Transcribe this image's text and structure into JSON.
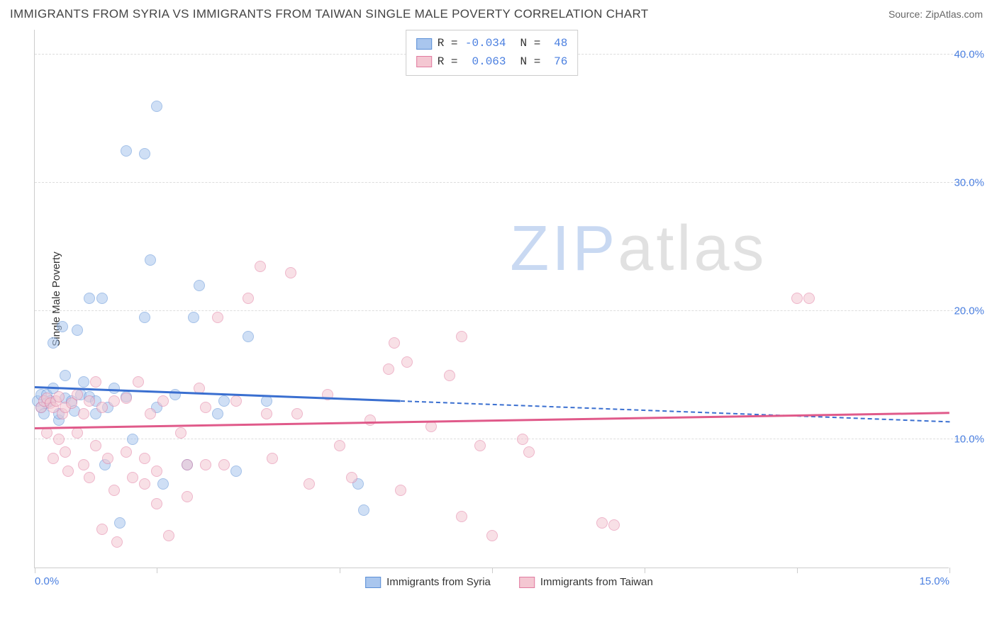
{
  "title": "IMMIGRANTS FROM SYRIA VS IMMIGRANTS FROM TAIWAN SINGLE MALE POVERTY CORRELATION CHART",
  "source": "Source: ZipAtlas.com",
  "y_axis_label": "Single Male Poverty",
  "watermark": {
    "text_zip": "ZIP",
    "text_atlas": "atlas",
    "color_zip": "#c9d9f2",
    "color_atlas": "#e1e1e1"
  },
  "chart": {
    "type": "scatter",
    "xlim": [
      0,
      15
    ],
    "ylim": [
      0,
      42
    ],
    "x_ticks": [
      0.0,
      2.0,
      5.0,
      7.5,
      10.0,
      12.5,
      15.0
    ],
    "x_tick_labels": {
      "0": "0.0%",
      "15": "15.0%"
    },
    "y_gridlines": [
      10,
      20,
      30,
      40
    ],
    "y_tick_labels": [
      "10.0%",
      "20.0%",
      "30.0%",
      "40.0%"
    ],
    "background_color": "#ffffff",
    "grid_color": "#dddddd",
    "axis_label_color": "#4a7fe0",
    "marker_radius": 8,
    "marker_opacity": 0.55,
    "series": [
      {
        "name": "Immigrants from Syria",
        "fill": "#a9c6ee",
        "stroke": "#5b8fd6",
        "line_color": "#3a6fd0",
        "R": "-0.034",
        "N": "48",
        "regression": {
          "x1": 0.0,
          "y1": 14.0,
          "x2": 15.0,
          "y2": 11.3,
          "solid_until_x": 6.0
        },
        "points": [
          [
            0.05,
            13.0
          ],
          [
            0.1,
            12.5
          ],
          [
            0.1,
            13.5
          ],
          [
            0.15,
            12.0
          ],
          [
            0.2,
            13.5
          ],
          [
            0.2,
            12.8
          ],
          [
            0.25,
            13.0
          ],
          [
            0.3,
            17.5
          ],
          [
            0.3,
            14.0
          ],
          [
            0.4,
            11.5
          ],
          [
            0.4,
            12.0
          ],
          [
            0.45,
            18.8
          ],
          [
            0.5,
            13.2
          ],
          [
            0.5,
            15.0
          ],
          [
            0.6,
            13.0
          ],
          [
            0.65,
            12.2
          ],
          [
            0.7,
            18.5
          ],
          [
            0.75,
            13.5
          ],
          [
            0.8,
            14.5
          ],
          [
            0.9,
            21.0
          ],
          [
            0.9,
            13.3
          ],
          [
            1.0,
            12.0
          ],
          [
            1.0,
            13.0
          ],
          [
            1.1,
            21.0
          ],
          [
            1.15,
            8.0
          ],
          [
            1.2,
            12.5
          ],
          [
            1.3,
            14.0
          ],
          [
            1.4,
            3.5
          ],
          [
            1.5,
            32.5
          ],
          [
            1.5,
            13.3
          ],
          [
            1.6,
            10.0
          ],
          [
            1.8,
            32.3
          ],
          [
            1.8,
            19.5
          ],
          [
            1.9,
            24.0
          ],
          [
            2.0,
            36.0
          ],
          [
            2.0,
            12.5
          ],
          [
            2.1,
            6.5
          ],
          [
            2.3,
            13.5
          ],
          [
            2.5,
            8.0
          ],
          [
            2.6,
            19.5
          ],
          [
            2.7,
            22.0
          ],
          [
            3.0,
            12.0
          ],
          [
            3.1,
            13.0
          ],
          [
            3.3,
            7.5
          ],
          [
            3.5,
            18.0
          ],
          [
            3.8,
            13.0
          ],
          [
            5.3,
            6.5
          ],
          [
            5.4,
            4.5
          ]
        ]
      },
      {
        "name": "Immigrants from Taiwan",
        "fill": "#f4c7d2",
        "stroke": "#e17ba0",
        "line_color": "#e05a8a",
        "R": "0.063",
        "N": "76",
        "regression": {
          "x1": 0.0,
          "y1": 10.8,
          "x2": 15.0,
          "y2": 12.0,
          "solid_until_x": 15.0
        },
        "points": [
          [
            0.1,
            12.5
          ],
          [
            0.15,
            13.0
          ],
          [
            0.2,
            13.2
          ],
          [
            0.2,
            10.5
          ],
          [
            0.25,
            12.8
          ],
          [
            0.3,
            12.5
          ],
          [
            0.3,
            8.5
          ],
          [
            0.35,
            13.0
          ],
          [
            0.4,
            13.3
          ],
          [
            0.4,
            10.0
          ],
          [
            0.45,
            12.0
          ],
          [
            0.5,
            12.5
          ],
          [
            0.5,
            9.0
          ],
          [
            0.55,
            7.5
          ],
          [
            0.6,
            12.8
          ],
          [
            0.7,
            10.5
          ],
          [
            0.7,
            13.5
          ],
          [
            0.8,
            12.0
          ],
          [
            0.8,
            8.0
          ],
          [
            0.9,
            13.0
          ],
          [
            0.9,
            7.0
          ],
          [
            1.0,
            14.5
          ],
          [
            1.0,
            9.5
          ],
          [
            1.1,
            12.5
          ],
          [
            1.1,
            3.0
          ],
          [
            1.2,
            8.5
          ],
          [
            1.3,
            13.0
          ],
          [
            1.3,
            6.0
          ],
          [
            1.35,
            2.0
          ],
          [
            1.5,
            9.0
          ],
          [
            1.5,
            13.2
          ],
          [
            1.6,
            7.0
          ],
          [
            1.7,
            14.5
          ],
          [
            1.8,
            8.5
          ],
          [
            1.8,
            6.5
          ],
          [
            1.9,
            12.0
          ],
          [
            2.0,
            7.5
          ],
          [
            2.0,
            5.0
          ],
          [
            2.1,
            13.0
          ],
          [
            2.2,
            2.5
          ],
          [
            2.4,
            10.5
          ],
          [
            2.5,
            8.0
          ],
          [
            2.5,
            5.5
          ],
          [
            2.7,
            14.0
          ],
          [
            2.8,
            8.0
          ],
          [
            2.8,
            12.5
          ],
          [
            3.0,
            19.5
          ],
          [
            3.1,
            8.0
          ],
          [
            3.3,
            13.0
          ],
          [
            3.5,
            21.0
          ],
          [
            3.7,
            23.5
          ],
          [
            3.8,
            12.0
          ],
          [
            3.9,
            8.5
          ],
          [
            4.2,
            23.0
          ],
          [
            4.3,
            12.0
          ],
          [
            4.5,
            6.5
          ],
          [
            4.8,
            13.5
          ],
          [
            5.0,
            9.5
          ],
          [
            5.2,
            7.0
          ],
          [
            5.5,
            11.5
          ],
          [
            5.8,
            15.5
          ],
          [
            5.9,
            17.5
          ],
          [
            6.0,
            6.0
          ],
          [
            6.1,
            16.0
          ],
          [
            6.5,
            11.0
          ],
          [
            6.8,
            15.0
          ],
          [
            7.0,
            4.0
          ],
          [
            7.0,
            18.0
          ],
          [
            7.3,
            9.5
          ],
          [
            7.5,
            2.5
          ],
          [
            8.0,
            10.0
          ],
          [
            8.1,
            9.0
          ],
          [
            9.3,
            3.5
          ],
          [
            9.5,
            3.3
          ],
          [
            12.5,
            21.0
          ],
          [
            12.7,
            21.0
          ]
        ]
      }
    ]
  },
  "legend_top": {
    "R_label": "R =",
    "N_label": "N ="
  },
  "legend_bottom": {
    "items": [
      "Immigrants from Syria",
      "Immigrants from Taiwan"
    ]
  }
}
